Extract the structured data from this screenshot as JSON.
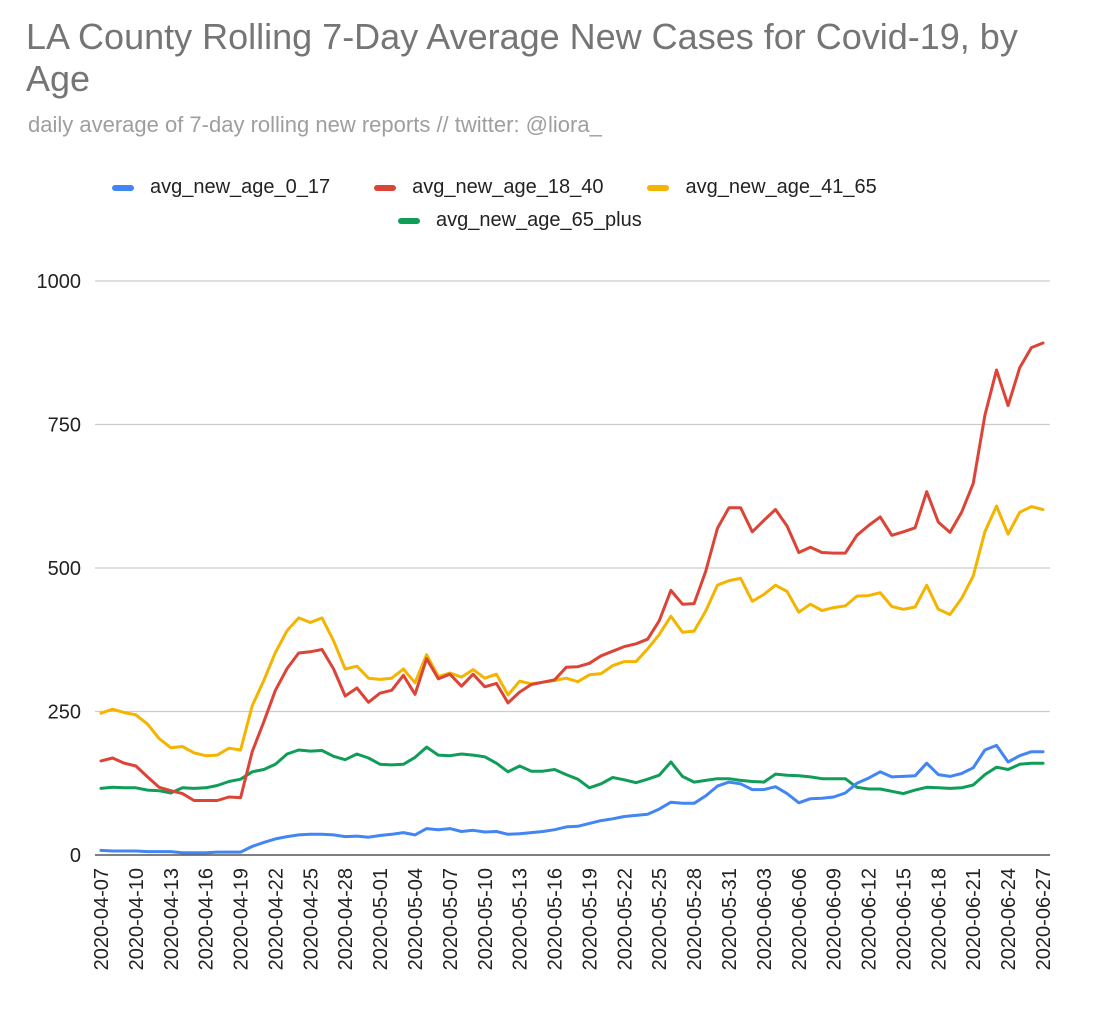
{
  "chart_data": {
    "type": "line",
    "title": "LA County Rolling 7-Day Average New Cases for Covid-19, by Age",
    "subtitle": "daily average of 7-day rolling new reports // twitter: @liora_",
    "xlabel": "",
    "ylabel": "",
    "ylim": [
      0,
      1000
    ],
    "yticks": [
      "0",
      "250",
      "500",
      "750",
      "1000"
    ],
    "grid": true,
    "legend_position": "top",
    "x": [
      "2020-04-07",
      "2020-04-08",
      "2020-04-09",
      "2020-04-10",
      "2020-04-11",
      "2020-04-12",
      "2020-04-13",
      "2020-04-14",
      "2020-04-15",
      "2020-04-16",
      "2020-04-17",
      "2020-04-18",
      "2020-04-19",
      "2020-04-20",
      "2020-04-21",
      "2020-04-22",
      "2020-04-23",
      "2020-04-24",
      "2020-04-25",
      "2020-04-26",
      "2020-04-27",
      "2020-04-28",
      "2020-04-29",
      "2020-04-30",
      "2020-05-01",
      "2020-05-02",
      "2020-05-03",
      "2020-05-04",
      "2020-05-05",
      "2020-05-06",
      "2020-05-07",
      "2020-05-08",
      "2020-05-09",
      "2020-05-10",
      "2020-05-11",
      "2020-05-12",
      "2020-05-13",
      "2020-05-14",
      "2020-05-15",
      "2020-05-16",
      "2020-05-17",
      "2020-05-18",
      "2020-05-19",
      "2020-05-20",
      "2020-05-21",
      "2020-05-22",
      "2020-05-23",
      "2020-05-24",
      "2020-05-25",
      "2020-05-26",
      "2020-05-27",
      "2020-05-28",
      "2020-05-29",
      "2020-05-30",
      "2020-05-31",
      "2020-06-01",
      "2020-06-02",
      "2020-06-03",
      "2020-06-04",
      "2020-06-05",
      "2020-06-06",
      "2020-06-07",
      "2020-06-08",
      "2020-06-09",
      "2020-06-10",
      "2020-06-11",
      "2020-06-12",
      "2020-06-13",
      "2020-06-14",
      "2020-06-15",
      "2020-06-16",
      "2020-06-17",
      "2020-06-18",
      "2020-06-19",
      "2020-06-20",
      "2020-06-21",
      "2020-06-22",
      "2020-06-23",
      "2020-06-24",
      "2020-06-25",
      "2020-06-26",
      "2020-06-27"
    ],
    "xtick_labels": [
      "2020-04-07",
      "2020-04-10",
      "2020-04-13",
      "2020-04-16",
      "2020-04-19",
      "2020-04-22",
      "2020-04-25",
      "2020-04-28",
      "2020-05-01",
      "2020-05-04",
      "2020-05-07",
      "2020-05-10",
      "2020-05-13",
      "2020-05-16",
      "2020-05-19",
      "2020-05-22",
      "2020-05-25",
      "2020-05-28",
      "2020-05-31",
      "2020-06-03",
      "2020-06-06",
      "2020-06-09",
      "2020-06-12",
      "2020-06-15",
      "2020-06-18",
      "2020-06-21",
      "2020-06-24",
      "2020-06-27"
    ],
    "series": [
      {
        "name": "avg_new_age_0_17",
        "color": "#4285f4",
        "values": [
          8,
          7,
          7,
          7,
          6,
          6,
          6,
          4,
          4,
          4,
          5,
          5,
          5,
          15,
          22,
          28,
          32,
          35,
          36,
          36,
          35,
          32,
          33,
          31,
          34,
          36,
          39,
          35,
          46,
          44,
          46,
          41,
          43,
          40,
          41,
          36,
          37,
          39,
          41,
          44,
          49,
          50,
          55,
          60,
          63,
          67,
          69,
          71,
          80,
          92,
          90,
          90,
          103,
          120,
          127,
          124,
          114,
          114,
          119,
          107,
          91,
          98,
          99,
          101,
          108,
          125,
          134,
          145,
          136,
          137,
          138,
          160,
          140,
          137,
          142,
          152,
          183,
          191,
          162,
          173,
          180,
          180
        ]
      },
      {
        "name": "avg_new_age_18_40",
        "color": "#db4437",
        "values": [
          164,
          169,
          160,
          155,
          136,
          118,
          112,
          107,
          95,
          95,
          95,
          101,
          100,
          180,
          232,
          287,
          325,
          352,
          354,
          358,
          324,
          277,
          291,
          266,
          282,
          287,
          313,
          280,
          342,
          307,
          315,
          294,
          315,
          293,
          299,
          265,
          284,
          297,
          301,
          305,
          327,
          328,
          334,
          347,
          355,
          363,
          368,
          376,
          408,
          461,
          437,
          438,
          494,
          569,
          605,
          605,
          563,
          583,
          602,
          573,
          527,
          536,
          527,
          526,
          526,
          557,
          574,
          589,
          557,
          563,
          570,
          633,
          580,
          562,
          597,
          647,
          766,
          845,
          783,
          849,
          884,
          892
        ]
      },
      {
        "name": "avg_new_age_41_65",
        "color": "#f4b400",
        "values": [
          247,
          254,
          248,
          244,
          228,
          203,
          187,
          189,
          178,
          173,
          174,
          186,
          183,
          260,
          304,
          353,
          391,
          413,
          405,
          413,
          373,
          324,
          329,
          308,
          306,
          308,
          324,
          300,
          349,
          311,
          317,
          310,
          323,
          308,
          315,
          279,
          303,
          298,
          301,
          304,
          308,
          302,
          314,
          316,
          330,
          337,
          337,
          359,
          384,
          416,
          388,
          390,
          425,
          470,
          478,
          482,
          442,
          454,
          470,
          459,
          423,
          437,
          426,
          431,
          434,
          451,
          452,
          457,
          433,
          428,
          432,
          470,
          428,
          419,
          447,
          486,
          563,
          608,
          559,
          597,
          607,
          602
        ]
      },
      {
        "name": "avg_new_age_65_plus",
        "color": "#0f9d58",
        "values": [
          116,
          118,
          117,
          117,
          113,
          112,
          108,
          117,
          116,
          117,
          121,
          128,
          132,
          145,
          149,
          158,
          176,
          183,
          181,
          182,
          172,
          166,
          176,
          169,
          158,
          157,
          158,
          170,
          188,
          174,
          173,
          176,
          174,
          171,
          160,
          145,
          155,
          146,
          146,
          149,
          140,
          132,
          117,
          124,
          135,
          131,
          126,
          132,
          139,
          162,
          137,
          127,
          130,
          133,
          133,
          130,
          128,
          127,
          141,
          139,
          138,
          136,
          133,
          133,
          133,
          118,
          115,
          115,
          111,
          107,
          113,
          118,
          117,
          116,
          117,
          122,
          140,
          153,
          149,
          158,
          160,
          160
        ]
      }
    ]
  }
}
